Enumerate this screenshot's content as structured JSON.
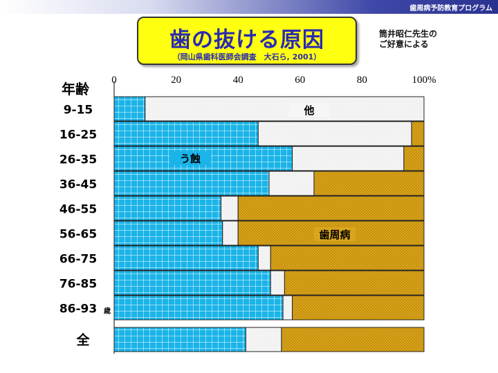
{
  "header": {
    "banner": "歯周病予防教育プログラム",
    "title": "歯の抜ける原因",
    "subtitle": "（岡山県歯科医師会調査　大石ら, 2001）",
    "credit_line1": "筒井昭仁先生の",
    "credit_line2": "ご好意による"
  },
  "chart_data": {
    "type": "bar",
    "orientation": "horizontal",
    "stacked": true,
    "row_header": "年齢",
    "categories": [
      "9-15",
      "16-25",
      "26-35",
      "36-45",
      "46-55",
      "56-65",
      "66-75",
      "76-85",
      "86-93",
      "全"
    ],
    "category_suffix_last_age": "歳",
    "x_ticks": [
      "0",
      "20",
      "40",
      "60",
      "80",
      "100%"
    ],
    "xlim": [
      0,
      100
    ],
    "series": [
      {
        "name": "う蝕",
        "color": "#1ab4e8",
        "values": [
          10,
          46.5,
          57.5,
          50,
          34.5,
          35,
          46.5,
          50.5,
          54.5,
          42.5
        ]
      },
      {
        "name": "他",
        "color": "#f2f2f2",
        "values": [
          90,
          49.5,
          36,
          14.5,
          5.5,
          5,
          4,
          4.5,
          3,
          11.5
        ]
      },
      {
        "name": "歯周病",
        "color": "#d4a017",
        "values": [
          0,
          4,
          6.5,
          35.5,
          60,
          60,
          49.5,
          45,
          42.5,
          46
        ]
      }
    ]
  }
}
